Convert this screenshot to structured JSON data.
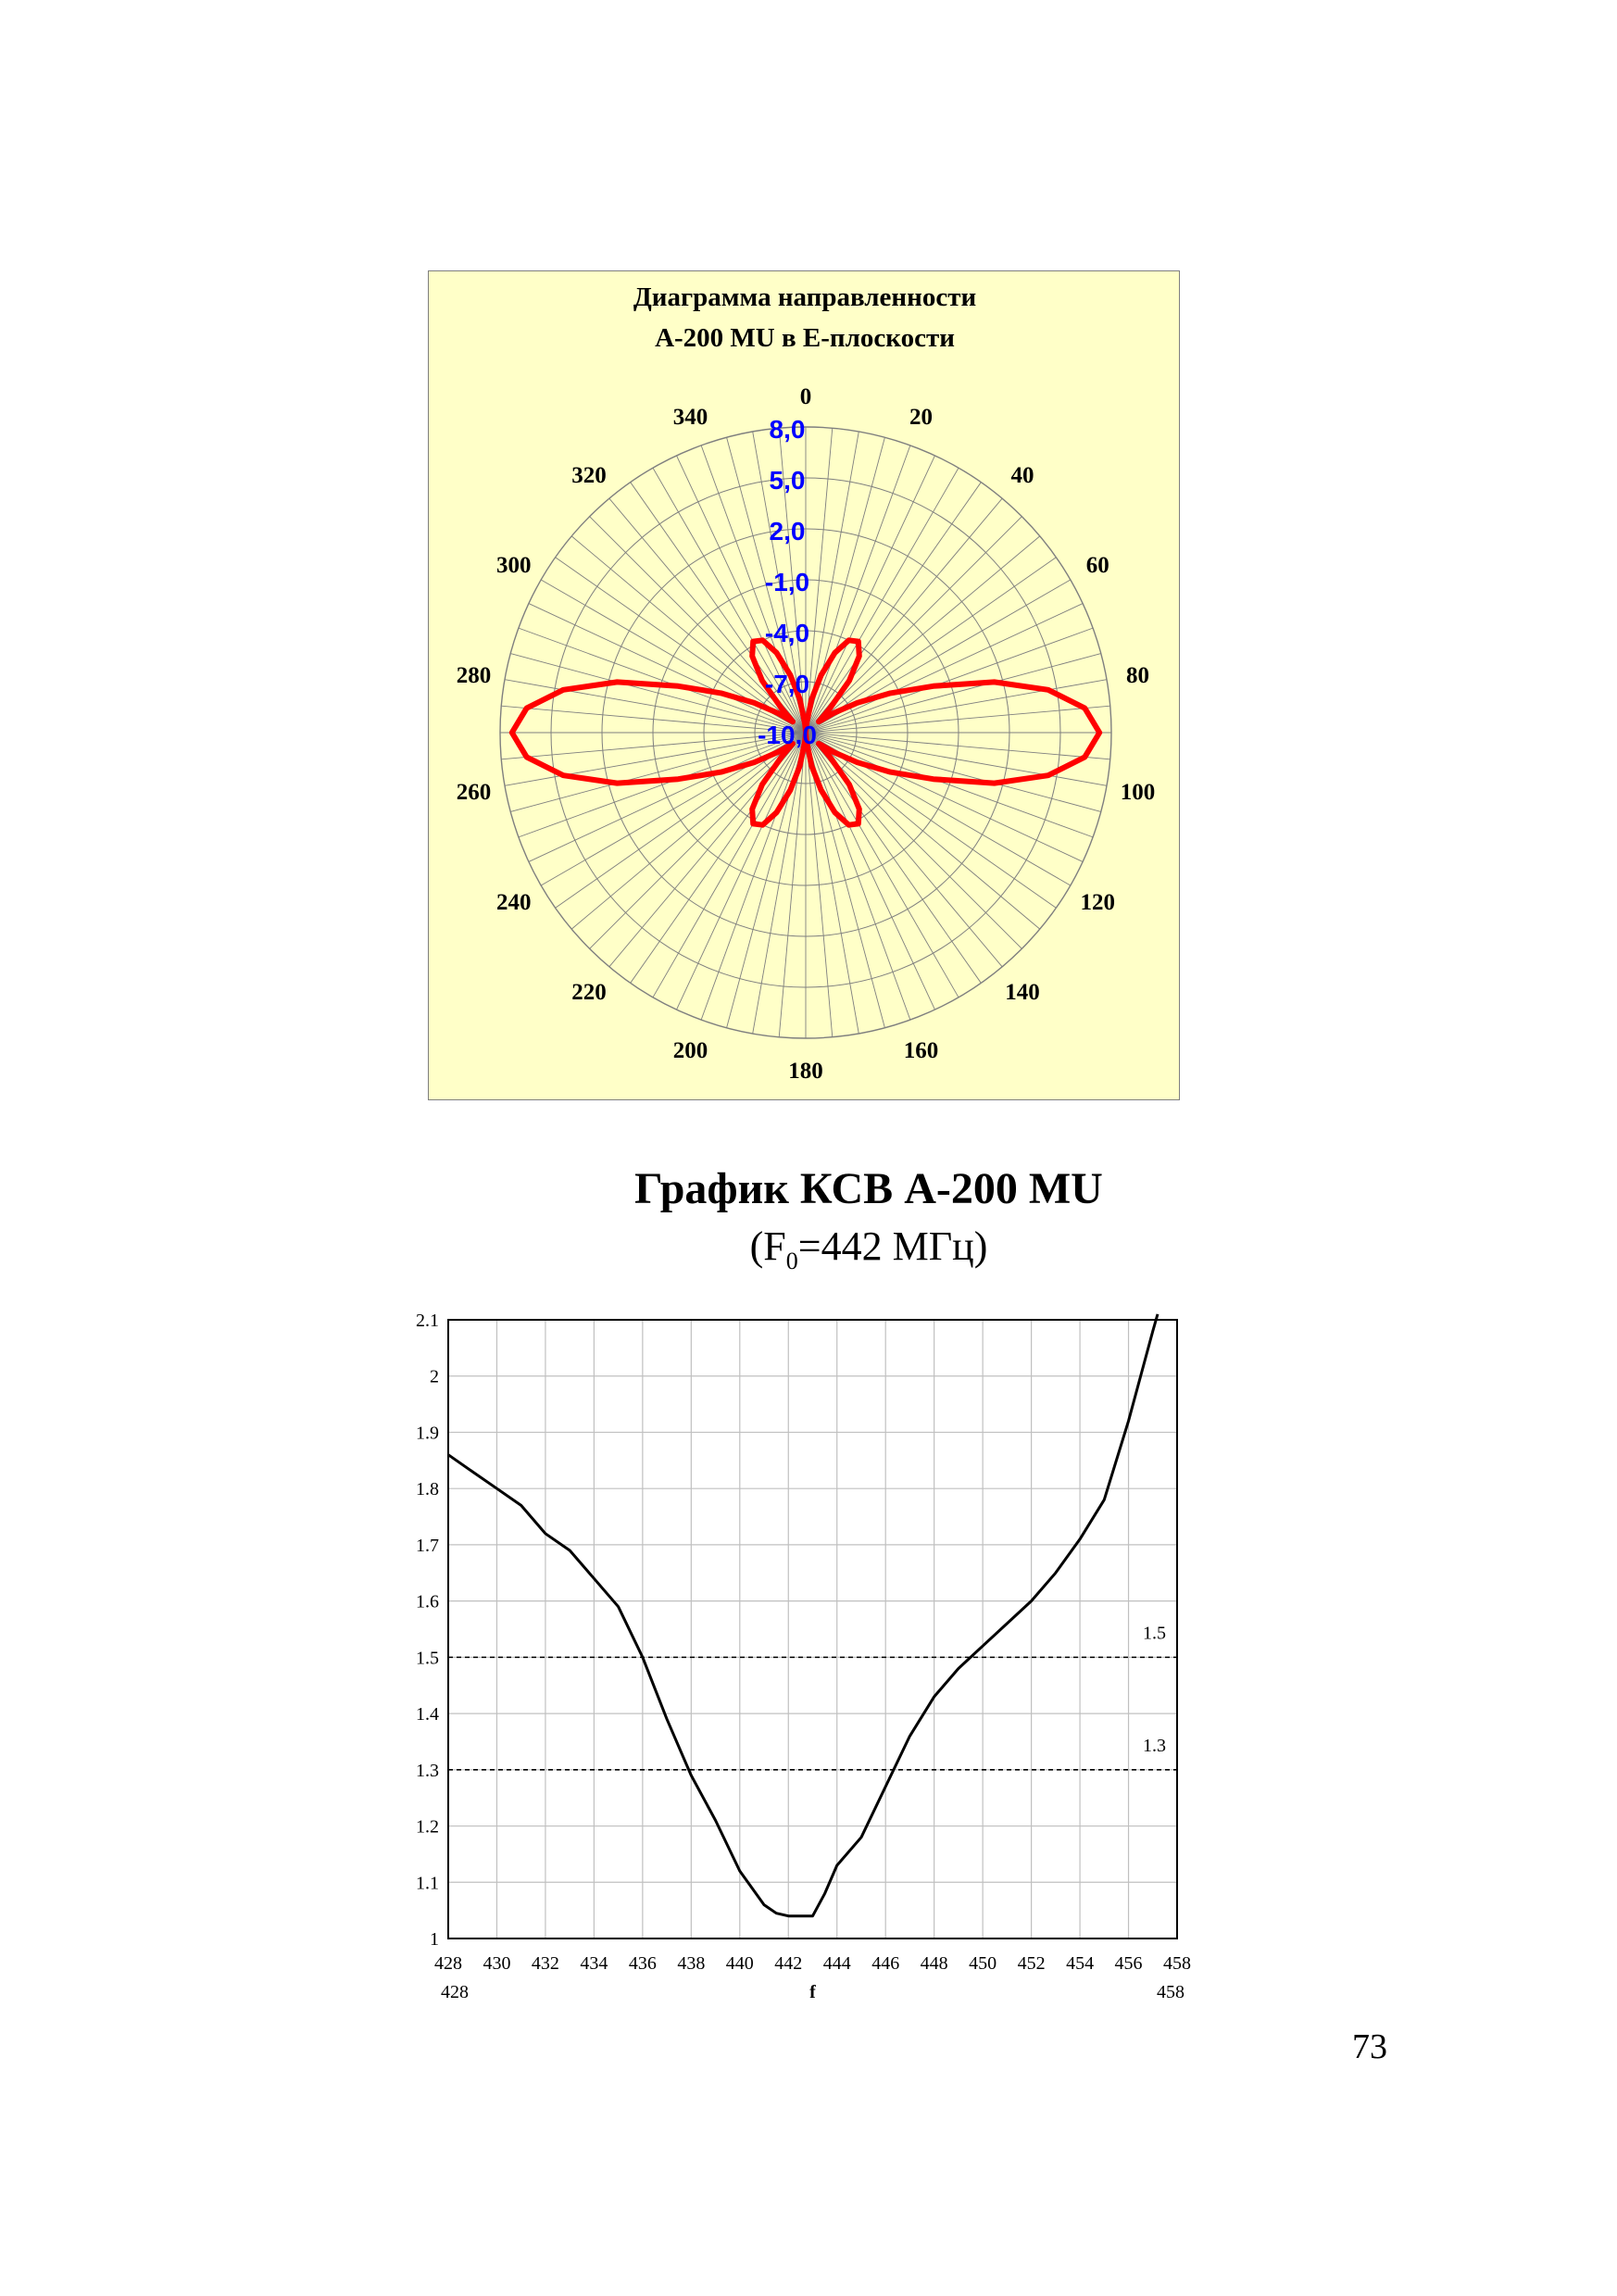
{
  "page_number": "73",
  "colors": {
    "panel_bg": "#ffffc8",
    "pattern": "#ff0000",
    "radial_labels": "#0000ff",
    "grid": "#7f7f7f",
    "vswr_curve": "#000000"
  },
  "chart_data": [
    {
      "type": "polar",
      "title_line1": "Диаграмма направленности",
      "title_line2": "А-200 MU в Е-плоскости",
      "angle_direction": "clockwise",
      "angle_zero": "top",
      "angle_tick_step_deg": 20,
      "angle_labels": [
        "0",
        "20",
        "40",
        "60",
        "80",
        "100",
        "120",
        "140",
        "160",
        "180",
        "200",
        "220",
        "240",
        "260",
        "280",
        "300",
        "320",
        "340"
      ],
      "radial_labels": [
        "-10,0",
        "-7,0",
        "-4,0",
        "-1,0",
        "2,0",
        "5,0",
        "8,0"
      ],
      "radial_values": [
        -10,
        -7,
        -4,
        -1,
        2,
        5,
        8
      ],
      "rlim": [
        -10,
        8
      ],
      "series": [
        {
          "angles": [
            0,
            5,
            10,
            15,
            20,
            25,
            30,
            35,
            40,
            45,
            50,
            55,
            60,
            65,
            70,
            75,
            80,
            85,
            90,
            95,
            100,
            105,
            110,
            115,
            120,
            125,
            130,
            135,
            140,
            145,
            150,
            155,
            160,
            165,
            170,
            175,
            180,
            185,
            190,
            195,
            200,
            205,
            210,
            215,
            220,
            225,
            230,
            235,
            240,
            245,
            250,
            255,
            260,
            265,
            270,
            275,
            280,
            285,
            290,
            295,
            300,
            305,
            310,
            315,
            320,
            325,
            330,
            335,
            340,
            345,
            350,
            355
          ],
          "values": [
            -10.0,
            -9.5,
            -8.0,
            -6.5,
            -5.0,
            -4.0,
            -3.8,
            -4.5,
            -6.0,
            -8.0,
            -9.0,
            -8.0,
            -6.5,
            -4.5,
            -2.0,
            1.5,
            4.5,
            6.5,
            7.3,
            6.5,
            4.5,
            1.5,
            -2.0,
            -4.5,
            -6.5,
            -8.0,
            -9.0,
            -8.0,
            -6.0,
            -4.5,
            -3.8,
            -4.0,
            -5.0,
            -6.5,
            -8.0,
            -9.5,
            -10.0,
            -9.5,
            -8.0,
            -6.5,
            -5.0,
            -4.0,
            -3.8,
            -4.5,
            -6.0,
            -8.0,
            -9.0,
            -8.0,
            -6.5,
            -4.5,
            -2.0,
            1.5,
            4.5,
            6.5,
            7.3,
            6.5,
            4.5,
            1.5,
            -2.0,
            -4.5,
            -6.5,
            -8.0,
            -9.0,
            -8.0,
            -6.0,
            -4.5,
            -3.8,
            -4.0,
            -5.0,
            -6.5,
            -8.0,
            -9.5
          ]
        }
      ]
    },
    {
      "type": "line",
      "title": "График КСВ А-200 MU",
      "subtitle_prefix": "(F",
      "subtitle_sub": "0",
      "subtitle_suffix": "=442 МГц)",
      "xlabel": "f",
      "x_ticks": [
        "428",
        "430",
        "432",
        "434",
        "436",
        "438",
        "440",
        "442",
        "444",
        "446",
        "448",
        "450",
        "452",
        "454",
        "456",
        "458"
      ],
      "x_range_labels": [
        "428",
        "458"
      ],
      "y_ticks": [
        "1",
        "1.1",
        "1.2",
        "1.3",
        "1.4",
        "1.5",
        "1.6",
        "1.7",
        "1.8",
        "1.9",
        "2",
        "2.1"
      ],
      "xlim": [
        428,
        458
      ],
      "ylim": [
        1,
        2.1
      ],
      "reference_lines": [
        {
          "value": 1.5,
          "label": "1.5",
          "style": "dashed"
        },
        {
          "value": 1.3,
          "label": "1.3",
          "style": "dashed"
        }
      ],
      "series": [
        {
          "x": [
            428,
            429,
            430,
            431,
            432,
            433,
            434,
            435,
            436,
            437,
            438,
            439,
            440,
            441,
            441.5,
            442,
            442.5,
            443,
            443.5,
            444,
            445,
            446,
            447,
            448,
            449,
            450,
            451,
            452,
            453,
            454,
            455,
            456,
            457,
            457.2
          ],
          "y": [
            1.86,
            1.83,
            1.8,
            1.77,
            1.72,
            1.69,
            1.64,
            1.59,
            1.5,
            1.39,
            1.29,
            1.21,
            1.12,
            1.06,
            1.045,
            1.04,
            1.04,
            1.04,
            1.08,
            1.13,
            1.18,
            1.27,
            1.36,
            1.43,
            1.48,
            1.52,
            1.56,
            1.6,
            1.65,
            1.71,
            1.78,
            1.92,
            2.08,
            2.11
          ]
        }
      ]
    }
  ]
}
